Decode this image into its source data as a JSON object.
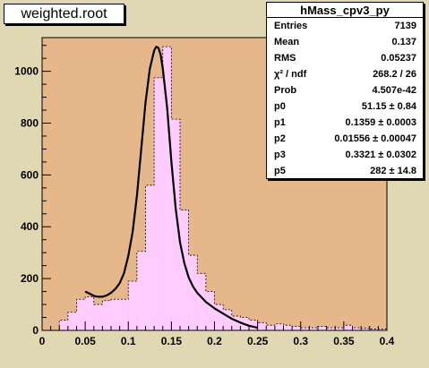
{
  "title_box": {
    "text": "weighted.root"
  },
  "stats_box": {
    "title": "hMass_cpv3_py",
    "rows": [
      {
        "label": "Entries",
        "value": "7139"
      },
      {
        "label": "Mean",
        "value": "0.137"
      },
      {
        "label": "RMS",
        "value": "0.05237"
      },
      {
        "label": "χ² / ndf",
        "value": "268.2 / 26"
      },
      {
        "label": "Prob",
        "value": "4.507e-42"
      },
      {
        "label": "p0",
        "value": "51.15 ± 0.84"
      },
      {
        "label": "p1",
        "value": "0.1359 ± 0.0003"
      },
      {
        "label": "p2",
        "value": "0.01556 ± 0.00047"
      },
      {
        "label": "p3",
        "value": "0.3321 ± 0.0302"
      },
      {
        "label": "p5",
        "value": "282 ± 14.8"
      }
    ]
  },
  "chart_data": {
    "type": "bar",
    "title": "",
    "xlabel": "",
    "ylabel": "",
    "xlim": [
      0,
      0.4
    ],
    "ylim": [
      0,
      1130
    ],
    "bin_width": 0.01,
    "x_ticks": [
      "0",
      "0.05",
      "0.1",
      "0.15",
      "0.2",
      "0.25",
      "0.3",
      "0.35",
      "0.4"
    ],
    "y_ticks": [
      "0",
      "200",
      "400",
      "600",
      "800",
      "1000"
    ],
    "grid": false,
    "legend": "none",
    "colors": {
      "frame_bg": "#e0d7b3",
      "plot_bg": "#e5b78b",
      "hist_fill": "#ffccff",
      "hist_outline": "#000000",
      "fit_line": "#000000"
    },
    "series": [
      {
        "name": "hMass_cpv3_py",
        "bin_low_edges": [
          0.0,
          0.01,
          0.02,
          0.03,
          0.04,
          0.05,
          0.06,
          0.07,
          0.08,
          0.09,
          0.1,
          0.11,
          0.12,
          0.13,
          0.14,
          0.15,
          0.16,
          0.17,
          0.18,
          0.19,
          0.2,
          0.21,
          0.22,
          0.23,
          0.24,
          0.25,
          0.26,
          0.27,
          0.28,
          0.29,
          0.3,
          0.31,
          0.32,
          0.33,
          0.34,
          0.35,
          0.36,
          0.37,
          0.38,
          0.39
        ],
        "values": [
          0,
          0,
          40,
          70,
          120,
          130,
          100,
          115,
          120,
          120,
          190,
          305,
          560,
          975,
          1095,
          815,
          465,
          290,
          220,
          150,
          100,
          80,
          55,
          50,
          40,
          30,
          20,
          25,
          20,
          15,
          10,
          10,
          15,
          10,
          10,
          20,
          10,
          8,
          5,
          5
        ]
      }
    ],
    "fit_curve": {
      "x": [
        0.05,
        0.055,
        0.06,
        0.065,
        0.07,
        0.075,
        0.08,
        0.085,
        0.09,
        0.095,
        0.1,
        0.105,
        0.11,
        0.115,
        0.12,
        0.125,
        0.13,
        0.1325,
        0.135,
        0.1375,
        0.14,
        0.145,
        0.15,
        0.155,
        0.16,
        0.165,
        0.17,
        0.175,
        0.18,
        0.19,
        0.2,
        0.21,
        0.22,
        0.23,
        0.24,
        0.25
      ],
      "y": [
        150,
        142,
        133,
        130,
        130,
        135,
        145,
        160,
        182,
        220,
        288,
        380,
        520,
        700,
        880,
        1010,
        1080,
        1095,
        1090,
        1065,
        1010,
        860,
        650,
        470,
        340,
        260,
        205,
        170,
        145,
        110,
        85,
        65,
        45,
        30,
        18,
        10
      ]
    }
  }
}
